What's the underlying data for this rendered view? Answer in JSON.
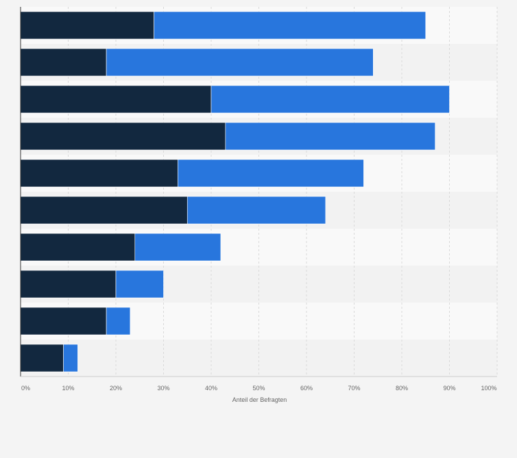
{
  "chart_data": {
    "type": "bar",
    "orientation": "horizontal",
    "stacked": true,
    "categories": [
      "",
      "",
      "",
      "",
      "",
      "",
      "",
      "",
      "",
      ""
    ],
    "series": [
      {
        "values": [
          28,
          18,
          40,
          43,
          33,
          35,
          24,
          20,
          18,
          9
        ]
      },
      {
        "values": [
          57,
          56,
          50,
          44,
          39,
          29,
          18,
          10,
          5,
          3
        ]
      }
    ],
    "xlim": [
      0,
      100
    ],
    "x_ticks": [
      "0%",
      "10%",
      "20%",
      "30%",
      "40%",
      "50%",
      "60%",
      "70%",
      "80%",
      "90%",
      "100%"
    ],
    "xlabel": "Anteil der Befragten",
    "ylabel": "",
    "title": "",
    "grid": true,
    "legend": "none",
    "colors": {
      "series": [
        "#12283f",
        "#2876dd"
      ],
      "band_light": "#f9f9f9",
      "band_dark": "#f2f2f2",
      "grid": "#d9d9d9",
      "axis": "#333333"
    }
  }
}
